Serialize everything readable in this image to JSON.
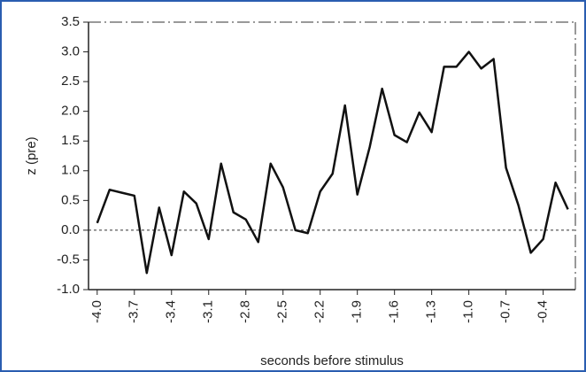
{
  "chart_data": {
    "type": "line",
    "x_label": "seconds before stimulus",
    "y_label": "z (pre)",
    "x": [
      -4.0,
      -3.9,
      -3.8,
      -3.7,
      -3.6,
      -3.5,
      -3.4,
      -3.3,
      -3.2,
      -3.1,
      -3.0,
      -2.9,
      -2.8,
      -2.7,
      -2.6,
      -2.5,
      -2.4,
      -2.3,
      -2.2,
      -2.1,
      -2.0,
      -1.9,
      -1.8,
      -1.7,
      -1.6,
      -1.5,
      -1.4,
      -1.3,
      -1.2,
      -1.1,
      -1.0,
      -0.9,
      -0.8,
      -0.7,
      -0.6,
      -0.5,
      -0.4,
      -0.3,
      -0.2
    ],
    "series": [
      {
        "color": "#111111",
        "values": [
          0.12,
          0.68,
          0.63,
          0.58,
          -0.72,
          0.38,
          -0.42,
          0.65,
          0.45,
          -0.15,
          1.12,
          0.3,
          0.18,
          -0.2,
          1.12,
          0.72,
          0.0,
          -0.05,
          0.65,
          0.95,
          2.1,
          0.6,
          1.4,
          2.38,
          1.6,
          1.48,
          1.98,
          1.65,
          2.75,
          2.75,
          3.0,
          2.72,
          2.88,
          1.05,
          0.42,
          -0.38,
          -0.15,
          0.8,
          0.35
        ]
      }
    ],
    "xlim": [
      -4.07,
      -0.14
    ],
    "xticks": [
      {
        "value": -4.0,
        "label": "-4.0"
      },
      -3.7,
      -3.4,
      -3.1,
      -2.8,
      -2.5,
      -2.2,
      -1.9,
      -1.6,
      -1.3,
      {
        "value": -1.0,
        "label": "-1.0"
      },
      -0.7,
      -0.4
    ],
    "ylim": [
      -1.0,
      3.5
    ],
    "yticks": [
      {
        "value": -1.0,
        "label": "-1.0"
      },
      -0.5,
      {
        "value": 0.0,
        "label": "0.0"
      },
      0.5,
      {
        "value": 1.0,
        "label": "1.0"
      },
      1.5,
      {
        "value": 2.0,
        "label": "2.0"
      },
      2.5,
      {
        "value": 3.0,
        "label": "3.0"
      },
      3.5
    ],
    "zero_line": true
  }
}
